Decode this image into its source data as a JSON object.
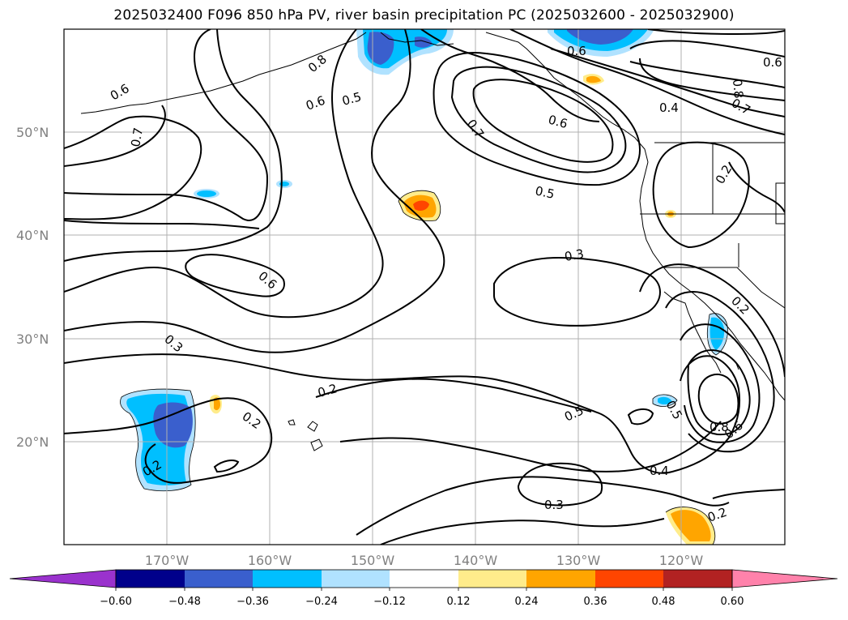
{
  "title": "2025032400 F096 850 hPa PV, river basin precipitation PC (2025032600 - 2025032900)",
  "lat_labels": [
    "50°N",
    "40°N",
    "30°N",
    "20°N"
  ],
  "lon_labels": [
    "170°W",
    "160°W",
    "150°W",
    "140°W",
    "130°W",
    "120°W"
  ],
  "colorbar": {
    "ticks": [
      "−0.60",
      "−0.48",
      "−0.36",
      "−0.24",
      "−0.12",
      "0.12",
      "0.24",
      "0.36",
      "0.48",
      "0.60"
    ],
    "colors": [
      "#9a32cd",
      "#00008b",
      "#3a5fcd",
      "#00bfff",
      "#b0e2ff",
      "#ffffff",
      "#ffec8b",
      "#ffa500",
      "#ff4500",
      "#b22222",
      "#ff82ab"
    ]
  },
  "contour_labels": [
    "0.6",
    "0.7",
    "0.6",
    "0.5",
    "0.8",
    "0.7",
    "0.6",
    "0.5",
    "0.6",
    "0.6",
    "0.4",
    "0.7",
    "0.8",
    "0.2",
    "0.6",
    "0.3",
    "0.3",
    "0.2",
    "0.2",
    "0.2",
    "0.5",
    "0.5",
    "0.4",
    "0.3",
    "0.2",
    "0.2",
    "0.8",
    "0.6"
  ]
}
